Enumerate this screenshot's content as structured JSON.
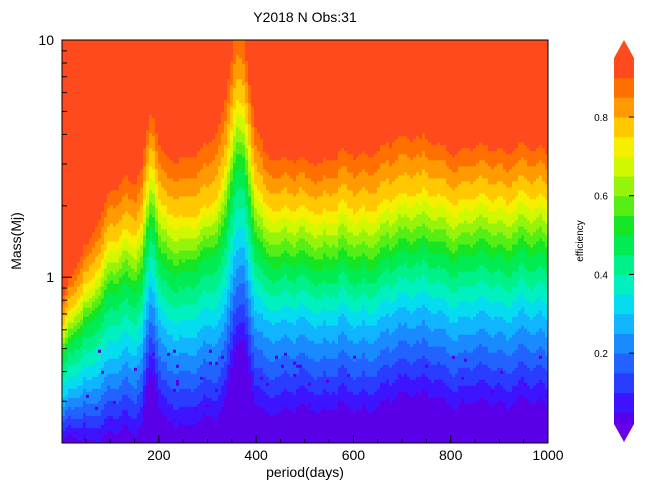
{
  "chart_data": {
    "type": "heatmap",
    "title": "Y2018 N Obs:31",
    "xlabel": "period(days)",
    "ylabel": "Mass(Mj)",
    "colorbar_label": "efficiency",
    "x_range": [
      1,
      1000
    ],
    "x_ticks": [
      "200",
      "400",
      "600",
      "800",
      "1000"
    ],
    "x_tick_values": [
      200,
      400,
      600,
      800,
      1000
    ],
    "y_scale": "log",
    "y_range": [
      0.2,
      10
    ],
    "y_ticks": [
      "1",
      "10"
    ],
    "y_tick_values": [
      1,
      10
    ],
    "colorbar_range": [
      0.02,
      0.95
    ],
    "colorbar_ticks": [
      "0.2",
      "0.4",
      "0.6",
      "0.8"
    ],
    "colorbar_tick_values": [
      0.2,
      0.4,
      0.6,
      0.8
    ],
    "contour_levels": [
      0.05,
      0.1,
      0.15,
      0.2,
      0.25,
      0.3,
      0.35,
      0.4,
      0.45,
      0.5,
      0.55,
      0.6,
      0.65,
      0.7,
      0.75,
      0.8,
      0.85,
      0.9
    ],
    "colors": [
      "#5a00e8",
      "#3c14ff",
      "#2a3cff",
      "#2262ff",
      "#1a8aff",
      "#10b4ff",
      "#06dcf0",
      "#00f0c0",
      "#00f08a",
      "#00ec52",
      "#14e626",
      "#56ee14",
      "#96f40c",
      "#d0f800",
      "#f4f000",
      "#ffc800",
      "#ff9a00",
      "#ff7000",
      "#ff4a1e"
    ],
    "boundary_levels": [
      0.05,
      0.3,
      0.5,
      0.75,
      0.9
    ],
    "boundaries_mass": [
      [
        0.2,
        0.22,
        0.24,
        0.25,
        0.26,
        0.27,
        0.28,
        0.28,
        0.29,
        0.29,
        0.3
      ],
      [
        0.3,
        0.45,
        0.55,
        0.6,
        0.66,
        0.66,
        0.64,
        0.64,
        0.66,
        0.67,
        0.69
      ],
      [
        0.45,
        0.85,
        1.0,
        1.15,
        1.45,
        1.15,
        1.1,
        1.1,
        1.15,
        1.2,
        1.25
      ],
      [
        0.6,
        1.4,
        1.8,
        1.9,
        2.8,
        2.0,
        1.9,
        1.95,
        2.0,
        2.1,
        2.2
      ],
      [
        0.8,
        2.3,
        3.0,
        3.5,
        5.5,
        3.3,
        3.0,
        3.3,
        3.5,
        3.4,
        3.5
      ]
    ],
    "boundaries_period": [
      1,
      100,
      200,
      300,
      360,
      420,
      500,
      600,
      700,
      800,
      1000
    ],
    "peaks": [
      {
        "period": 185,
        "mass_factor": 1.7,
        "width": 14
      },
      {
        "period": 365,
        "mass_factor": 2.1,
        "width": 22
      },
      {
        "period": 720,
        "mass_factor": 1.15,
        "width": 40
      }
    ]
  }
}
